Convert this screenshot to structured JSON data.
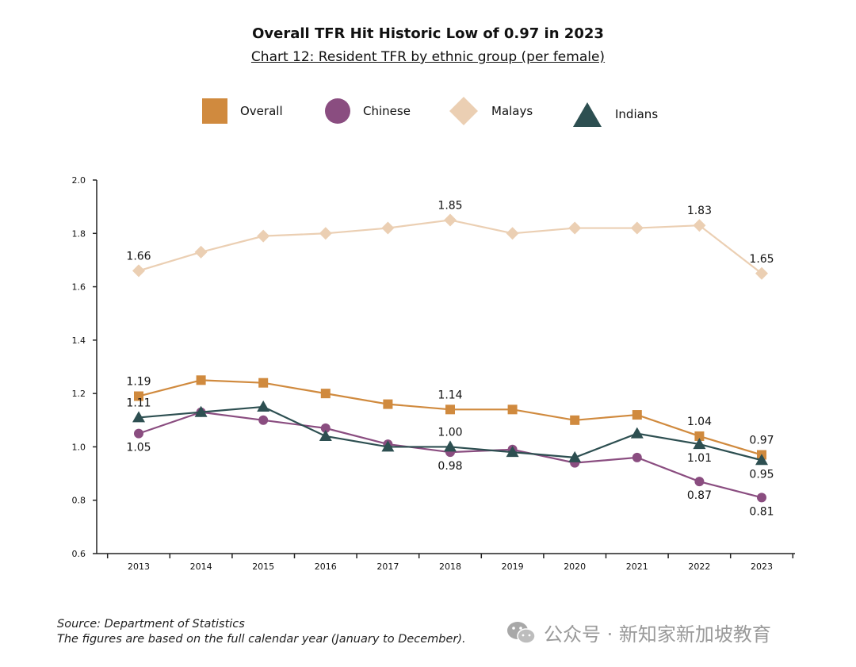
{
  "title": "Overall TFR Hit Historic Low of 0.97 in 2023",
  "subtitle": "Chart 12: Resident TFR by ethnic group (per female)",
  "source_line1": "Source: Department of Statistics",
  "source_line2": "The figures are based on the full calendar year (January to December).",
  "watermark": "公众号 · 新知家新加坡教育",
  "colors": {
    "overall": "#d08a3e",
    "chinese": "#8a4d80",
    "malays": "#ebcfb3",
    "indians": "#2d4f51",
    "axis": "#222222"
  },
  "chart_data": {
    "type": "line",
    "x": [
      "2013",
      "2014",
      "2015",
      "2016",
      "2017",
      "2018",
      "2019",
      "2020",
      "2021",
      "2022",
      "2023"
    ],
    "ylim": [
      0.6,
      2.0
    ],
    "yticks": [
      "0.6",
      "0.8",
      "1.0",
      "1.2",
      "1.4",
      "1.6",
      "1.8",
      "2.0"
    ],
    "grid": false,
    "legend_position": "top",
    "series": [
      {
        "name": "Overall",
        "key": "overall",
        "marker": "square",
        "values": [
          1.19,
          1.25,
          1.24,
          1.2,
          1.16,
          1.14,
          1.14,
          1.1,
          1.12,
          1.04,
          0.97
        ]
      },
      {
        "name": "Chinese",
        "key": "chinese",
        "marker": "circle",
        "values": [
          1.05,
          1.13,
          1.1,
          1.07,
          1.01,
          0.98,
          0.99,
          0.94,
          0.96,
          0.87,
          0.81
        ]
      },
      {
        "name": "Malays",
        "key": "malays",
        "marker": "diamond",
        "values": [
          1.66,
          1.73,
          1.79,
          1.8,
          1.82,
          1.85,
          1.8,
          1.82,
          1.82,
          1.83,
          1.65
        ]
      },
      {
        "name": "Indians",
        "key": "indians",
        "marker": "triangle",
        "values": [
          1.11,
          1.13,
          1.15,
          1.04,
          1.0,
          1.0,
          0.98,
          0.96,
          1.05,
          1.01,
          0.95
        ]
      }
    ],
    "annotations": [
      {
        "series": "malays",
        "index": 0,
        "text": "1.66",
        "pos": "above"
      },
      {
        "series": "malays",
        "index": 5,
        "text": "1.85",
        "pos": "above"
      },
      {
        "series": "malays",
        "index": 9,
        "text": "1.83",
        "pos": "above"
      },
      {
        "series": "malays",
        "index": 10,
        "text": "1.65",
        "pos": "above"
      },
      {
        "series": "overall",
        "index": 0,
        "text": "1.19",
        "pos": "above"
      },
      {
        "series": "indians",
        "index": 0,
        "text": "1.11",
        "pos": "above"
      },
      {
        "series": "chinese",
        "index": 0,
        "text": "1.05",
        "pos": "below"
      },
      {
        "series": "overall",
        "index": 5,
        "text": "1.14",
        "pos": "above"
      },
      {
        "series": "indians",
        "index": 5,
        "text": "1.00",
        "pos": "above"
      },
      {
        "series": "chinese",
        "index": 5,
        "text": "0.98",
        "pos": "below"
      },
      {
        "series": "overall",
        "index": 9,
        "text": "1.04",
        "pos": "above"
      },
      {
        "series": "indians",
        "index": 9,
        "text": "1.01",
        "pos": "below"
      },
      {
        "series": "chinese",
        "index": 9,
        "text": "0.87",
        "pos": "below"
      },
      {
        "series": "overall",
        "index": 10,
        "text": "0.97",
        "pos": "above"
      },
      {
        "series": "indians",
        "index": 10,
        "text": "0.95",
        "pos": "below"
      },
      {
        "series": "chinese",
        "index": 10,
        "text": "0.81",
        "pos": "below"
      }
    ]
  }
}
